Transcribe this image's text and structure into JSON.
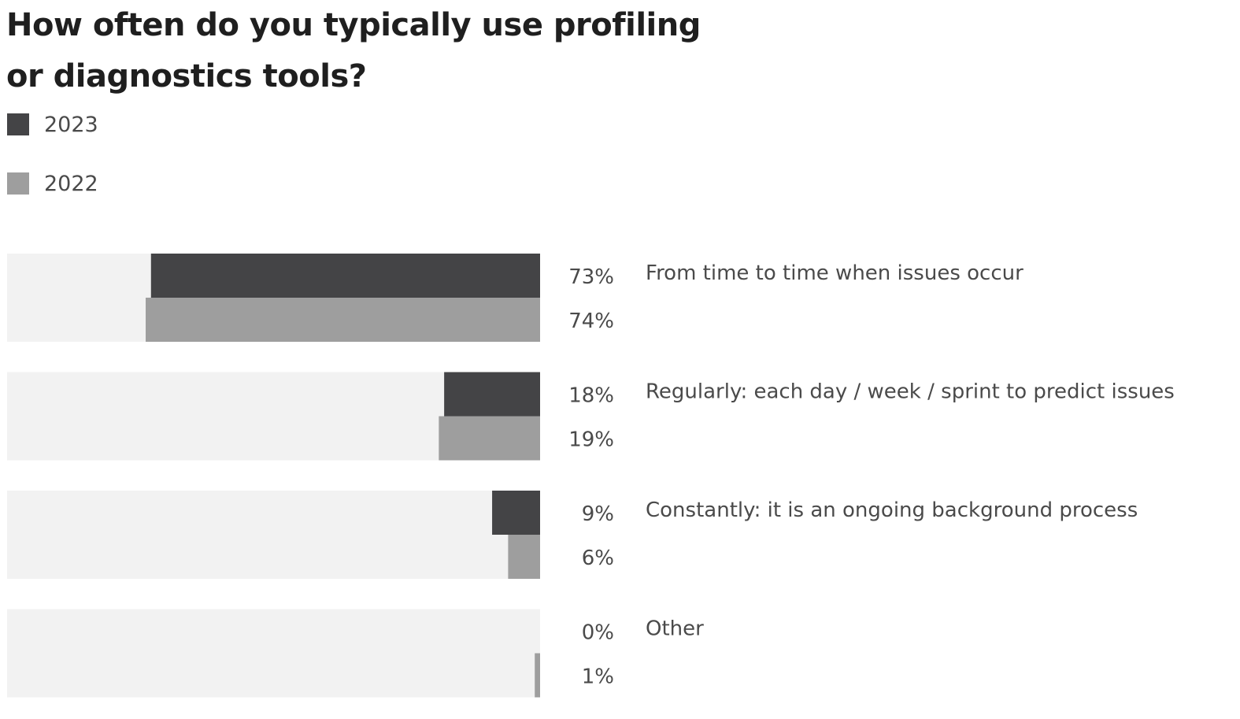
{
  "chart_data": {
    "type": "bar",
    "orientation": "horizontal",
    "title": "How often do you typically use profiling or diagnostics tools?",
    "categories": [
      "From time to time when issues occur",
      "Regularly: each day / week / sprint to predict issues",
      "Constantly: it is an ongoing background process",
      "Other"
    ],
    "series": [
      {
        "name": "2023",
        "color": "#444446",
        "values": [
          73,
          18,
          9,
          0
        ],
        "labels": [
          "73%",
          "18%",
          "9%",
          "0%"
        ]
      },
      {
        "name": "2022",
        "color": "#9e9e9e",
        "values": [
          74,
          19,
          6,
          1
        ],
        "labels": [
          "74%",
          "19%",
          "6%",
          "1%"
        ]
      }
    ],
    "xlim": [
      0,
      100
    ],
    "bar_direction": "right-to-left",
    "value_unit": "%",
    "track_color": "#f2f2f2",
    "legend_position": "top-left",
    "grid": false
  }
}
